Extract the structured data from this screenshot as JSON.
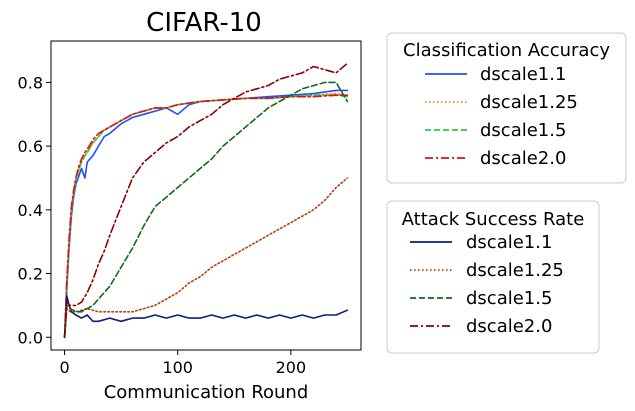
{
  "chart_data": {
    "type": "line",
    "title": "CIFAR-10",
    "xlabel": "Communication Round",
    "ylabel": "",
    "xlim": [
      -12,
      262
    ],
    "ylim": [
      -0.04,
      0.93
    ],
    "xticks": [
      0,
      100,
      200
    ],
    "xtick_labels": [
      "0",
      "100",
      "200"
    ],
    "yticks": [
      0.0,
      0.2,
      0.4,
      0.6,
      0.8
    ],
    "ytick_labels": [
      "0.0",
      "0.2",
      "0.4",
      "0.6",
      "0.8"
    ],
    "grid": false,
    "legends": [
      {
        "title": "Classification Accuracy",
        "placement": "right-top",
        "entries": [
          "dscale1.1",
          "dscale1.25",
          "dscale1.5",
          "dscale2.0"
        ]
      },
      {
        "title": "Attack Success Rate",
        "placement": "right-bottom",
        "entries": [
          "dscale1.1",
          "dscale1.25",
          "dscale1.5",
          "dscale2.0"
        ]
      }
    ],
    "series": [
      {
        "group": "Classification Accuracy",
        "name": "dscale1.1",
        "color": "#1f4fff",
        "dash": "solid",
        "x": [
          0,
          2,
          4,
          6,
          8,
          10,
          12,
          15,
          18,
          20,
          25,
          30,
          35,
          40,
          50,
          60,
          70,
          80,
          90,
          100,
          110,
          120,
          140,
          160,
          180,
          200,
          220,
          240,
          250
        ],
        "y": [
          0.0,
          0.15,
          0.28,
          0.38,
          0.44,
          0.48,
          0.5,
          0.53,
          0.5,
          0.55,
          0.57,
          0.6,
          0.63,
          0.64,
          0.67,
          0.69,
          0.7,
          0.71,
          0.72,
          0.7,
          0.73,
          0.74,
          0.745,
          0.75,
          0.755,
          0.76,
          0.765,
          0.775,
          0.775
        ]
      },
      {
        "group": "Classification Accuracy",
        "name": "dscale1.25",
        "color": "#ff7f0e",
        "dash": "dotted",
        "x": [
          0,
          2,
          4,
          6,
          8,
          10,
          12,
          15,
          18,
          20,
          25,
          30,
          35,
          40,
          50,
          60,
          70,
          80,
          90,
          100,
          120,
          140,
          160,
          180,
          200,
          220,
          240,
          250
        ],
        "y": [
          0.0,
          0.18,
          0.3,
          0.4,
          0.46,
          0.5,
          0.52,
          0.55,
          0.57,
          0.58,
          0.61,
          0.63,
          0.65,
          0.66,
          0.68,
          0.7,
          0.71,
          0.72,
          0.72,
          0.73,
          0.74,
          0.745,
          0.75,
          0.75,
          0.755,
          0.76,
          0.765,
          0.76
        ]
      },
      {
        "group": "Classification Accuracy",
        "name": "dscale1.5",
        "color": "#2ecc40",
        "dash": "dashed",
        "x": [
          0,
          2,
          4,
          6,
          8,
          10,
          12,
          15,
          18,
          20,
          25,
          30,
          35,
          40,
          50,
          60,
          70,
          80,
          90,
          100,
          120,
          140,
          160,
          180,
          200,
          220,
          240,
          250
        ],
        "y": [
          0.0,
          0.17,
          0.3,
          0.4,
          0.45,
          0.49,
          0.52,
          0.55,
          0.57,
          0.58,
          0.61,
          0.63,
          0.65,
          0.66,
          0.68,
          0.7,
          0.71,
          0.72,
          0.72,
          0.73,
          0.74,
          0.745,
          0.75,
          0.75,
          0.755,
          0.76,
          0.76,
          0.755
        ]
      },
      {
        "group": "Classification Accuracy",
        "name": "dscale2.0",
        "color": "#e01010",
        "dash": "dashdot",
        "x": [
          0,
          2,
          4,
          6,
          8,
          10,
          12,
          15,
          18,
          20,
          25,
          30,
          35,
          40,
          50,
          60,
          70,
          80,
          90,
          100,
          120,
          140,
          160,
          180,
          200,
          220,
          240,
          250
        ],
        "y": [
          0.0,
          0.18,
          0.31,
          0.41,
          0.46,
          0.5,
          0.53,
          0.56,
          0.58,
          0.59,
          0.62,
          0.64,
          0.65,
          0.66,
          0.68,
          0.7,
          0.71,
          0.72,
          0.72,
          0.73,
          0.74,
          0.745,
          0.75,
          0.75,
          0.755,
          0.755,
          0.76,
          0.76
        ]
      },
      {
        "group": "Attack Success Rate",
        "name": "dscale1.1",
        "color": "#0a1f7a",
        "dash": "solid",
        "x": [
          0,
          2,
          4,
          6,
          10,
          15,
          20,
          25,
          30,
          40,
          50,
          60,
          70,
          80,
          90,
          100,
          110,
          120,
          130,
          140,
          150,
          160,
          170,
          180,
          190,
          200,
          210,
          220,
          230,
          240,
          250
        ],
        "y": [
          0.0,
          0.13,
          0.1,
          0.08,
          0.07,
          0.06,
          0.07,
          0.05,
          0.05,
          0.06,
          0.05,
          0.06,
          0.06,
          0.07,
          0.06,
          0.07,
          0.06,
          0.06,
          0.07,
          0.06,
          0.07,
          0.06,
          0.07,
          0.06,
          0.07,
          0.06,
          0.07,
          0.06,
          0.07,
          0.07,
          0.085
        ]
      },
      {
        "group": "Attack Success Rate",
        "name": "dscale1.25",
        "color": "#b5400a",
        "dash": "dotted",
        "x": [
          0,
          2,
          5,
          10,
          20,
          30,
          40,
          50,
          60,
          70,
          80,
          90,
          100,
          110,
          120,
          130,
          140,
          150,
          160,
          170,
          180,
          190,
          200,
          210,
          220,
          230,
          240,
          250
        ],
        "y": [
          0.0,
          0.09,
          0.08,
          0.08,
          0.09,
          0.08,
          0.08,
          0.08,
          0.08,
          0.09,
          0.1,
          0.12,
          0.14,
          0.17,
          0.19,
          0.22,
          0.24,
          0.26,
          0.28,
          0.3,
          0.32,
          0.34,
          0.36,
          0.38,
          0.4,
          0.43,
          0.47,
          0.5
        ]
      },
      {
        "group": "Attack Success Rate",
        "name": "dscale1.5",
        "color": "#0f6b1c",
        "dash": "dashed",
        "x": [
          0,
          2,
          5,
          10,
          15,
          20,
          25,
          30,
          40,
          50,
          60,
          70,
          80,
          90,
          100,
          110,
          120,
          130,
          140,
          150,
          160,
          170,
          180,
          190,
          200,
          210,
          220,
          230,
          240,
          250
        ],
        "y": [
          0.0,
          0.1,
          0.09,
          0.08,
          0.08,
          0.09,
          0.1,
          0.12,
          0.16,
          0.22,
          0.28,
          0.35,
          0.41,
          0.44,
          0.47,
          0.5,
          0.53,
          0.56,
          0.6,
          0.63,
          0.66,
          0.69,
          0.72,
          0.74,
          0.76,
          0.78,
          0.79,
          0.8,
          0.8,
          0.74
        ]
      },
      {
        "group": "Attack Success Rate",
        "name": "dscale2.0",
        "color": "#8b0000",
        "dash": "dashdot",
        "x": [
          0,
          2,
          5,
          10,
          15,
          20,
          25,
          30,
          35,
          40,
          50,
          60,
          70,
          80,
          90,
          100,
          110,
          120,
          130,
          140,
          150,
          160,
          170,
          180,
          190,
          200,
          210,
          220,
          230,
          240,
          250
        ],
        "y": [
          0.0,
          0.11,
          0.1,
          0.1,
          0.11,
          0.14,
          0.18,
          0.23,
          0.27,
          0.32,
          0.41,
          0.5,
          0.55,
          0.58,
          0.61,
          0.63,
          0.66,
          0.68,
          0.7,
          0.73,
          0.75,
          0.77,
          0.78,
          0.79,
          0.81,
          0.82,
          0.83,
          0.85,
          0.84,
          0.83,
          0.86
        ]
      }
    ]
  }
}
